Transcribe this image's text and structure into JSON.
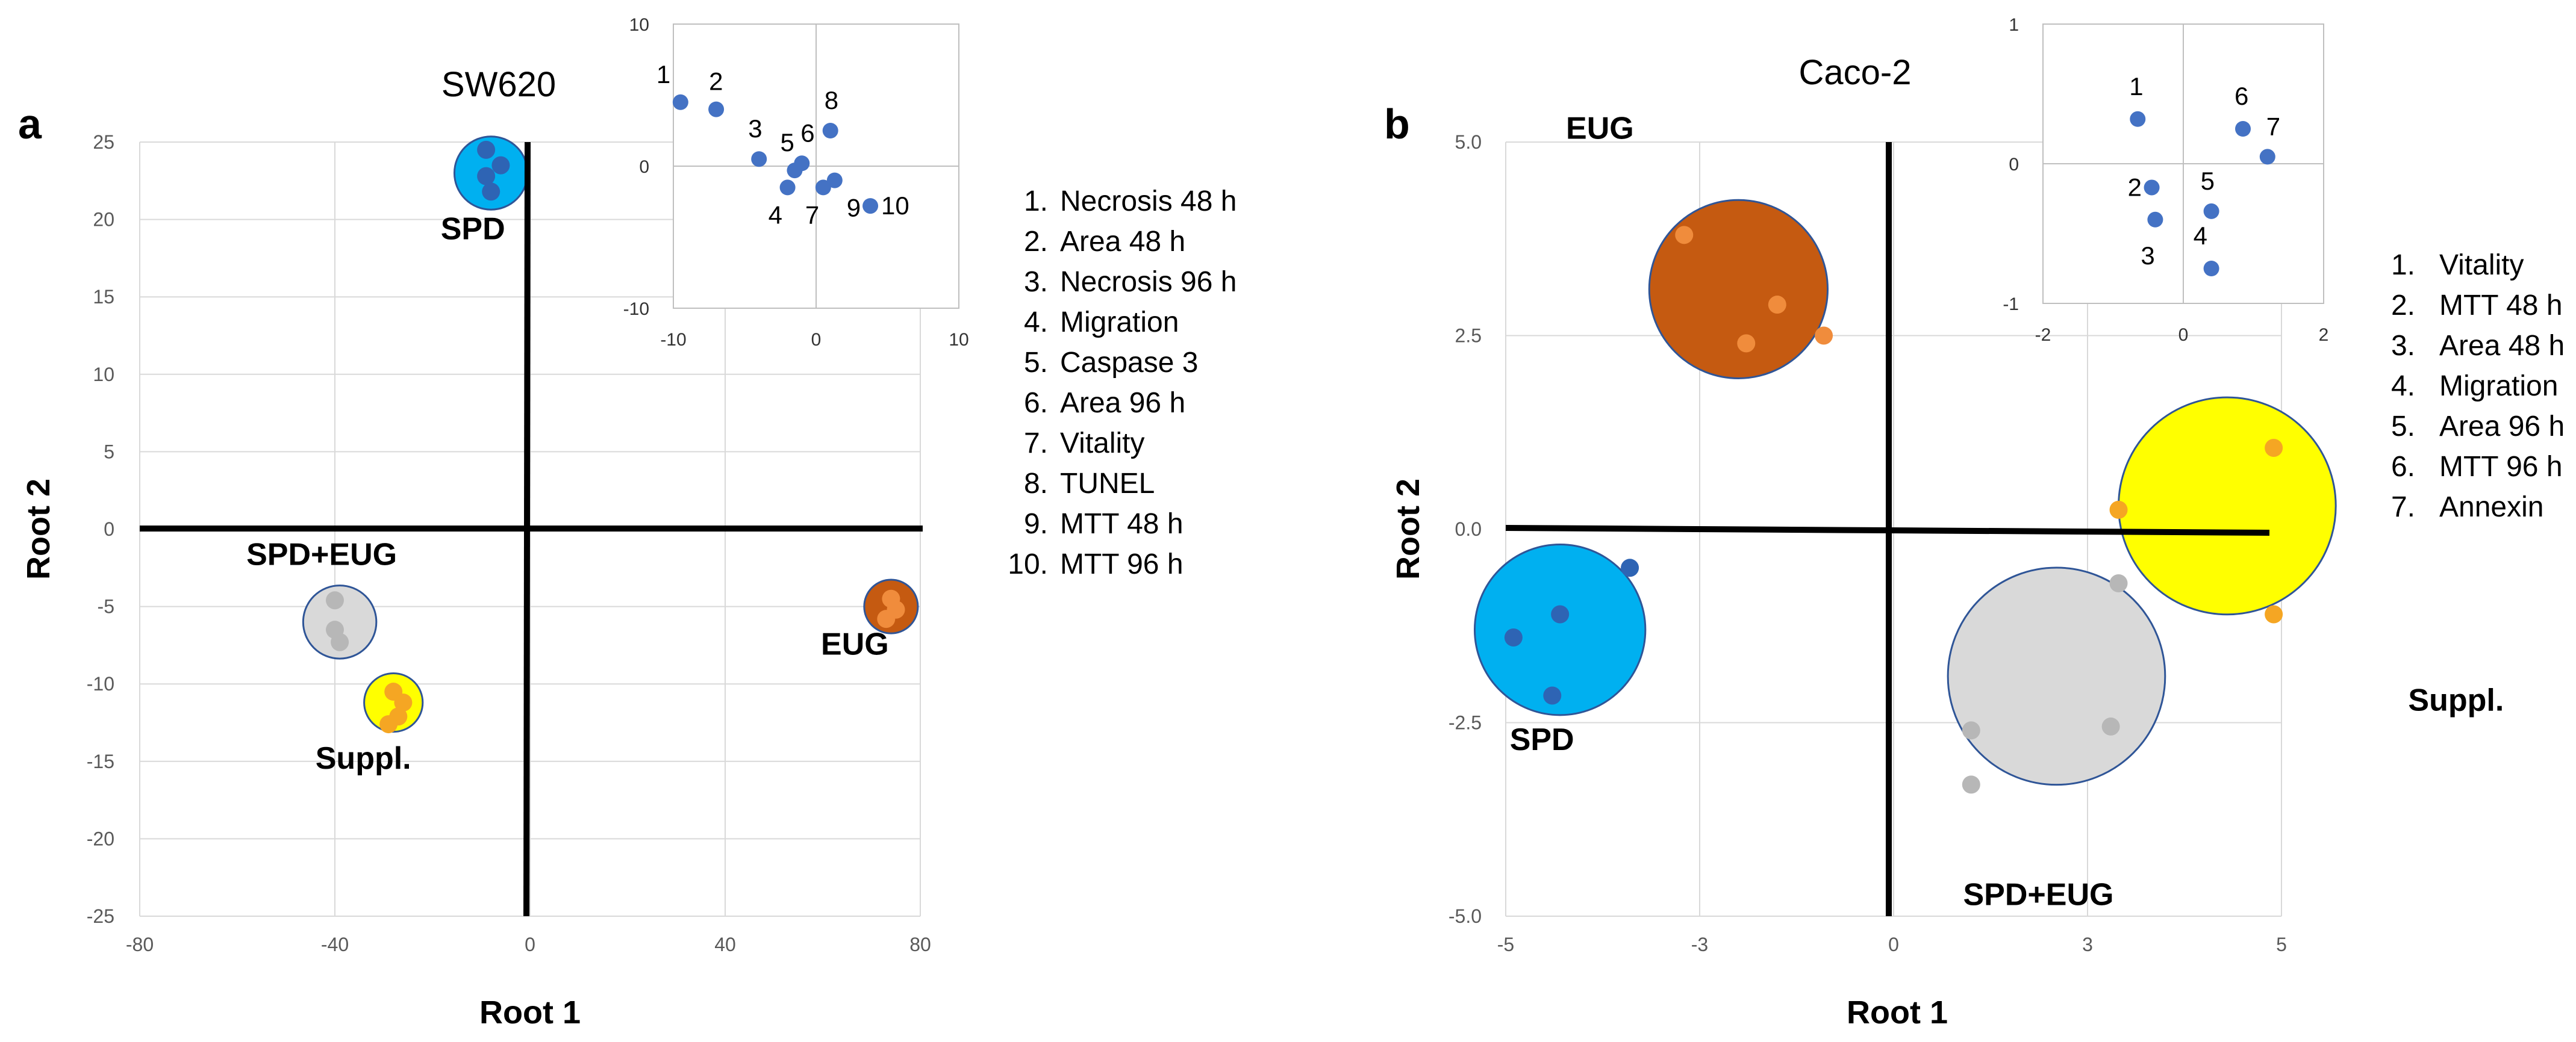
{
  "chart_data": [
    {
      "type": "scatter",
      "panel": "a",
      "title": "SW620",
      "xlabel": "Root 1",
      "ylabel": "Root 2",
      "xlim": [
        -80,
        80
      ],
      "ylim": [
        -25,
        25
      ],
      "xticks": [
        "-80",
        "-40",
        "0",
        "40",
        "80"
      ],
      "yticks": [
        "25",
        "20",
        "15",
        "10",
        "5",
        "0",
        "-5",
        "-10",
        "-15",
        "-20",
        "-25"
      ],
      "grid": true,
      "groups": [
        {
          "name": "SPD",
          "color": "#00b0f0",
          "point_color": "#2e64b4",
          "center": [
            -8,
            23
          ],
          "radius_x": 7.5,
          "points": [
            [
              -9,
              24.5
            ],
            [
              -6,
              23.5
            ],
            [
              -9,
              22.8
            ],
            [
              -8,
              21.8
            ]
          ]
        },
        {
          "name": "SPD+EUG",
          "color": "#d9d9d9",
          "point_color": "#b7b7b7",
          "center": [
            -39,
            -6
          ],
          "radius_x": 7.5,
          "points": [
            [
              -40,
              -4.6
            ],
            [
              -40,
              -6.5
            ],
            [
              -39,
              -7.3
            ]
          ]
        },
        {
          "name": "Suppl.",
          "color": "#ffff00",
          "point_color": "#f5a623",
          "center": [
            -28,
            -11.2
          ],
          "radius_x": 6,
          "points": [
            [
              -28,
              -10.5
            ],
            [
              -26,
              -11.2
            ],
            [
              -27,
              -12.1
            ],
            [
              -29,
              -12.6
            ]
          ]
        },
        {
          "name": "EUG",
          "color": "#c55a11",
          "point_color": "#f08c3c",
          "center": [
            74,
            -5
          ],
          "radius_x": 5.5,
          "points": [
            [
              74,
              -4.5
            ],
            [
              75,
              -5.2
            ],
            [
              73,
              -5.8
            ]
          ]
        }
      ],
      "inset": {
        "xlim": [
          -10,
          10
        ],
        "ylim": [
          -10,
          10
        ],
        "xticks": [
          "-10",
          "0",
          "10"
        ],
        "yticks": [
          "10",
          "0",
          "-10"
        ],
        "points": [
          {
            "label": "1",
            "x": -9.5,
            "y": 4.5
          },
          {
            "label": "2",
            "x": -7,
            "y": 4
          },
          {
            "label": "3",
            "x": -4,
            "y": 0.5
          },
          {
            "label": "4",
            "x": -2,
            "y": -1.5
          },
          {
            "label": "5",
            "x": -1.5,
            "y": -0.3
          },
          {
            "label": "6",
            "x": -1,
            "y": 0.2
          },
          {
            "label": "7",
            "x": 0.5,
            "y": -1.5
          },
          {
            "label": "8",
            "x": 1,
            "y": 2.5
          },
          {
            "label": "9",
            "x": 1.3,
            "y": -1
          },
          {
            "label": "10",
            "x": 3.8,
            "y": -2.8
          }
        ]
      },
      "legend": [
        "Necrosis 48 h",
        "Area 48 h",
        "Necrosis 96 h",
        "Migration",
        "Caspase 3",
        "Area 96 h",
        "Vitality",
        "TUNEL",
        "MTT 48 h",
        "MTT 96 h"
      ]
    },
    {
      "type": "scatter",
      "panel": "b",
      "title": "Caco-2",
      "xlabel": "Root 1",
      "ylabel": "Root 2",
      "xlim": [
        -5,
        5
      ],
      "ylim": [
        -5,
        5
      ],
      "xticks": [
        "-5",
        "-3",
        "0",
        "3",
        "5"
      ],
      "yticks": [
        "5.0",
        "2.5",
        "0.0",
        "-2.5",
        "-5.0"
      ],
      "grid": true,
      "groups": [
        {
          "name": "EUG",
          "color": "#c55a11",
          "point_color": "#f08c3c",
          "center": [
            -2.0,
            3.1
          ],
          "radius_x": 1.15,
          "points": [
            [
              -2.7,
              3.8
            ],
            [
              -1.5,
              2.9
            ],
            [
              -1.9,
              2.4
            ],
            [
              -0.9,
              2.5
            ]
          ]
        },
        {
          "name": "SPD",
          "color": "#00b0f0",
          "point_color": "#2e64b4",
          "center": [
            -4.3,
            -1.3
          ],
          "radius_x": 1.1,
          "points": [
            [
              -3.4,
              -0.5
            ],
            [
              -4.3,
              -1.1
            ],
            [
              -4.9,
              -1.4
            ],
            [
              -4.4,
              -2.15
            ]
          ]
        },
        {
          "name": "Suppl.",
          "color": "#ffff00",
          "point_color": "#f5a623",
          "center": [
            4.3,
            0.3
          ],
          "radius_x": 1.4,
          "points": [
            [
              4.9,
              1.05
            ],
            [
              2.9,
              0.25
            ],
            [
              4.9,
              -1.1
            ]
          ]
        },
        {
          "name": "SPD+EUG",
          "color": "#d9d9d9",
          "point_color": "#b7b7b7",
          "center": [
            2.1,
            -1.9
          ],
          "radius_x": 1.4,
          "points": [
            [
              2.9,
              -0.7
            ],
            [
              1.0,
              -2.6
            ],
            [
              2.8,
              -2.55
            ],
            [
              1.0,
              -3.3
            ]
          ]
        }
      ],
      "inset": {
        "xlim": [
          -2,
          2
        ],
        "ylim": [
          -1,
          1
        ],
        "xticks": [
          "-2",
          "0",
          "2"
        ],
        "yticks": [
          "1",
          "0",
          "-1"
        ],
        "points": [
          {
            "label": "1",
            "x": -0.65,
            "y": 0.32
          },
          {
            "label": "2",
            "x": -0.45,
            "y": -0.17
          },
          {
            "label": "3",
            "x": -0.4,
            "y": -0.4
          },
          {
            "label": "4",
            "x": 0.4,
            "y": -0.75
          },
          {
            "label": "5",
            "x": 0.4,
            "y": -0.34
          },
          {
            "label": "6",
            "x": 0.85,
            "y": 0.25
          },
          {
            "label": "7",
            "x": 1.2,
            "y": 0.05
          }
        ]
      },
      "legend": [
        "Vitality",
        "MTT 48 h",
        "Area 48 h",
        "Migration",
        "Area 96 h",
        "MTT 96 h",
        "Annexin"
      ]
    }
  ]
}
